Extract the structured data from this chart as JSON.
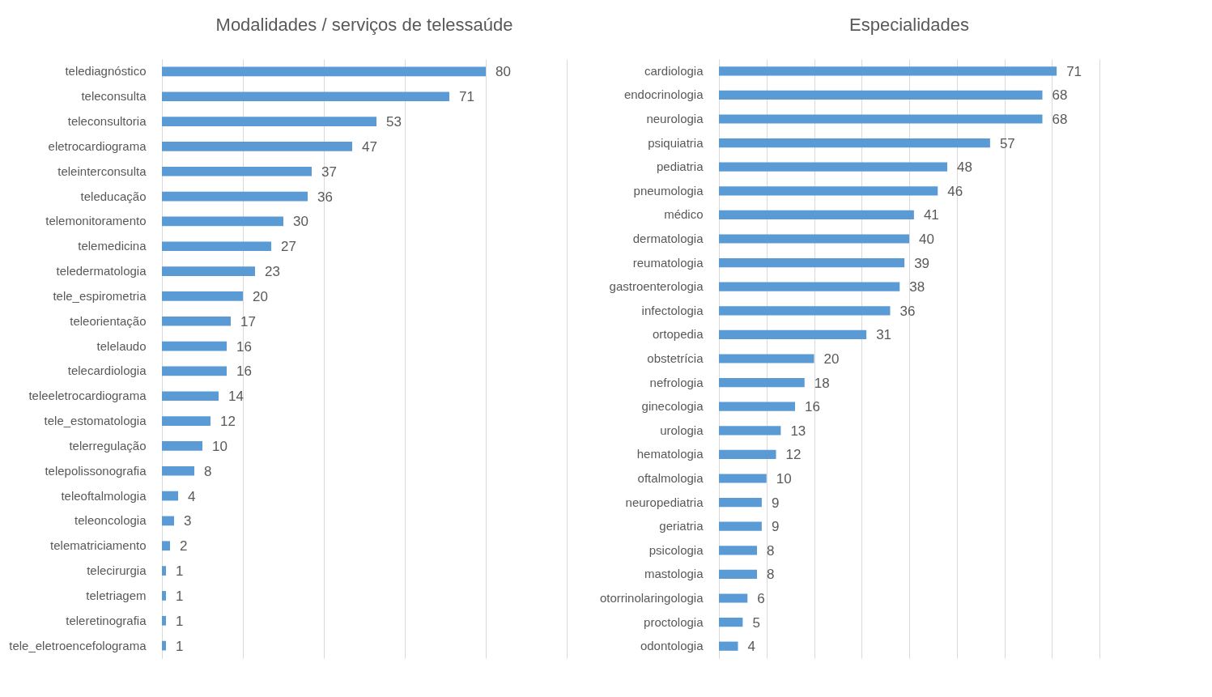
{
  "chart_data": [
    {
      "type": "bar",
      "orientation": "horizontal",
      "title": "Modalidades / serviços de telessaúde",
      "categories": [
        "telediagnóstico",
        "teleconsulta",
        "teleconsultoria",
        "eletrocardiograma",
        "teleinterconsulta",
        "teleducação",
        "telemonitoramento",
        "telemedicina",
        "teledermatologia",
        "tele_espirometria",
        "teleorientação",
        "telelaudo",
        "telecardiologia",
        "teleeletrocardiograma",
        "tele_estomatologia",
        "telerregulação",
        "telepolissonografia",
        "teleoftalmologia",
        "teleoncologia",
        "telematriciamento",
        "telecirurgia",
        "teletriagem",
        "teleretinografia",
        "tele_eletroencefolograma"
      ],
      "series": [
        {
          "color": "#5b9bd5",
          "values": [
            80,
            71,
            53,
            47,
            37,
            36,
            30,
            27,
            23,
            20,
            17,
            16,
            16,
            14,
            12,
            10,
            8,
            4,
            3,
            2,
            1,
            1,
            1,
            1
          ]
        }
      ],
      "xlim": [
        0,
        100
      ],
      "xticks": [
        {
          "value": 0,
          "label": null
        },
        {
          "value": 20,
          "label": null
        },
        {
          "value": 40,
          "label": null
        },
        {
          "value": 60,
          "label": null
        },
        {
          "value": 80,
          "label": null
        },
        {
          "value": 100,
          "label": null
        }
      ],
      "grid": "x",
      "tick_labels": "y",
      "data_labels": true
    },
    {
      "type": "bar",
      "orientation": "horizontal",
      "title": "Especialidades",
      "categories": [
        "cardiologia",
        "endocrinologia",
        "neurologia",
        "psiquiatria",
        "pediatria",
        "pneumologia",
        "médico",
        "dermatologia",
        "reumatologia",
        "gastroenterologia",
        "infectologia",
        "ortopedia",
        "obstetrícia",
        "nefrologia",
        "ginecologia",
        "urologia",
        "hematologia",
        "oftalmologia",
        "neuropediatria",
        "geriatria",
        "psicologia",
        "mastologia",
        "otorrinolaringologia",
        "proctologia",
        "odontologia"
      ],
      "series": [
        {
          "color": "#5b9bd5",
          "values": [
            71,
            68,
            68,
            57,
            48,
            46,
            41,
            40,
            39,
            38,
            36,
            31,
            20,
            18,
            16,
            13,
            12,
            10,
            9,
            9,
            8,
            8,
            6,
            5,
            4
          ]
        }
      ],
      "xlim": [
        0,
        80
      ],
      "xticks": [
        {
          "value": 0,
          "label": null
        },
        {
          "value": 10,
          "label": null
        },
        {
          "value": 20,
          "label": null
        },
        {
          "value": 30,
          "label": null
        },
        {
          "value": 40,
          "label": null
        },
        {
          "value": 50,
          "label": null
        },
        {
          "value": 60,
          "label": null
        },
        {
          "value": 70,
          "label": null
        },
        {
          "value": 80,
          "label": null
        }
      ],
      "grid": "x",
      "tick_labels": "y",
      "data_labels": true
    }
  ]
}
